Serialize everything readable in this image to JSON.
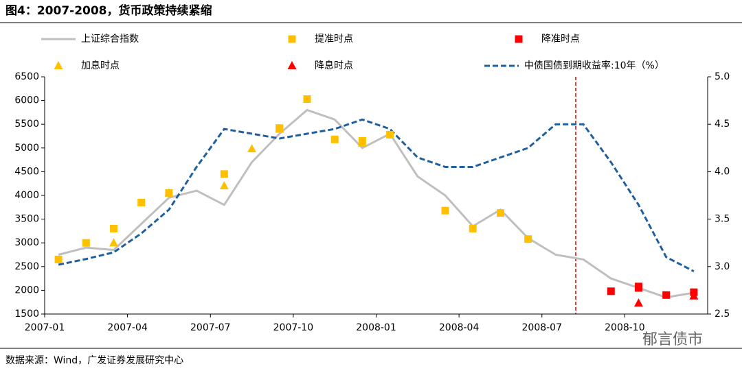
{
  "chart_data": {
    "type": "line",
    "title": "图4：2007-2008，货币政策持续紧缩",
    "source": "数据来源：Wind，广发证券发展研究中心",
    "watermark": "郁言债市",
    "xlim": [
      "2007-01",
      "2009-01"
    ],
    "xticks": [
      "2007-01",
      "2007-04",
      "2007-07",
      "2007-10",
      "2008-01",
      "2008-04",
      "2008-07",
      "2008-10"
    ],
    "ylim": [
      1500,
      6500
    ],
    "yticks": [
      1500,
      2000,
      2500,
      3000,
      3500,
      4000,
      4500,
      5000,
      5500,
      6000,
      6500
    ],
    "y2lim": [
      2.5,
      5.0
    ],
    "y2ticks": [
      {
        "value": 2.5,
        "label": "2.5"
      },
      {
        "value": 3,
        "label": "3.0"
      },
      {
        "value": 3.5,
        "label": "3.5"
      },
      {
        "value": 4,
        "label": "4.0"
      },
      {
        "value": 4.5,
        "label": "4.5"
      },
      {
        "value": 5,
        "label": "5.0"
      }
    ],
    "series": [
      {
        "name": "上证综合指数",
        "color": "#bfbfbf",
        "marker": "line",
        "x": [
          "2007-01",
          "2007-02",
          "2007-03",
          "2007-04",
          "2007-05",
          "2007-06",
          "2007-07",
          "2007-08",
          "2007-09",
          "2007-10",
          "2007-11",
          "2007-12",
          "2008-01",
          "2008-02",
          "2008-03",
          "2008-04",
          "2008-05",
          "2008-06",
          "2008-07",
          "2008-08",
          "2008-09",
          "2008-10",
          "2008-11",
          "2008-12"
        ],
        "values": [
          2750,
          2900,
          2850,
          3400,
          3950,
          4100,
          3800,
          4700,
          5300,
          5800,
          5600,
          5000,
          5300,
          4400,
          4000,
          3350,
          3700,
          3100,
          2750,
          2650,
          2250,
          2050,
          1850,
          1950
        ]
      },
      {
        "name": "提准时点",
        "color": "#ffc000",
        "marker": "square",
        "x": [
          "2007-01",
          "2007-02",
          "2007-03",
          "2007-04",
          "2007-05",
          "2007-07",
          "2007-09",
          "2007-09",
          "2007-10",
          "2007-11",
          "2007-12",
          "2008-01",
          "2008-03",
          "2008-04",
          "2008-05",
          "2008-06"
        ],
        "values": [
          2650,
          3000,
          3300,
          3850,
          4050,
          4450,
          5400,
          5420,
          6030,
          5180,
          5150,
          5280,
          3680,
          3300,
          3630,
          3080
        ]
      },
      {
        "name": "降准时点",
        "color": "#ff0000",
        "marker": "square",
        "x": [
          "2008-09",
          "2008-10",
          "2008-10",
          "2008-11",
          "2008-12"
        ],
        "values": [
          1980,
          2080,
          2050,
          1900,
          1960
        ]
      },
      {
        "name": "加息时点",
        "color": "#ffc000",
        "marker": "triangle",
        "x": [
          "2007-03",
          "2007-05",
          "2007-07",
          "2007-08",
          "2007-09",
          "2007-12"
        ],
        "values": [
          3000,
          4050,
          4200,
          4980,
          5400,
          5100
        ]
      },
      {
        "name": "降息时点",
        "color": "#ff0000",
        "marker": "triangle",
        "x": [
          "2008-10",
          "2008-12"
        ],
        "values": [
          1730,
          1880
        ]
      },
      {
        "name": "中债国债到期收益率:10年（%）",
        "color": "#1f5f9f",
        "marker": "dash",
        "axis": "y2",
        "x": [
          "2007-01",
          "2007-02",
          "2007-03",
          "2007-04",
          "2007-05",
          "2007-06",
          "2007-07",
          "2007-08",
          "2007-09",
          "2007-10",
          "2007-11",
          "2007-12",
          "2008-01",
          "2008-02",
          "2008-03",
          "2008-04",
          "2008-05",
          "2008-06",
          "2008-07",
          "2008-08",
          "2008-09",
          "2008-10",
          "2008-11",
          "2008-12"
        ],
        "values": [
          3.02,
          3.08,
          3.15,
          3.35,
          3.6,
          4.05,
          4.45,
          4.4,
          4.35,
          4.4,
          4.45,
          4.55,
          4.45,
          4.15,
          4.05,
          4.05,
          4.15,
          4.25,
          4.5,
          4.5,
          4.1,
          3.65,
          3.1,
          2.95
        ]
      }
    ]
  }
}
